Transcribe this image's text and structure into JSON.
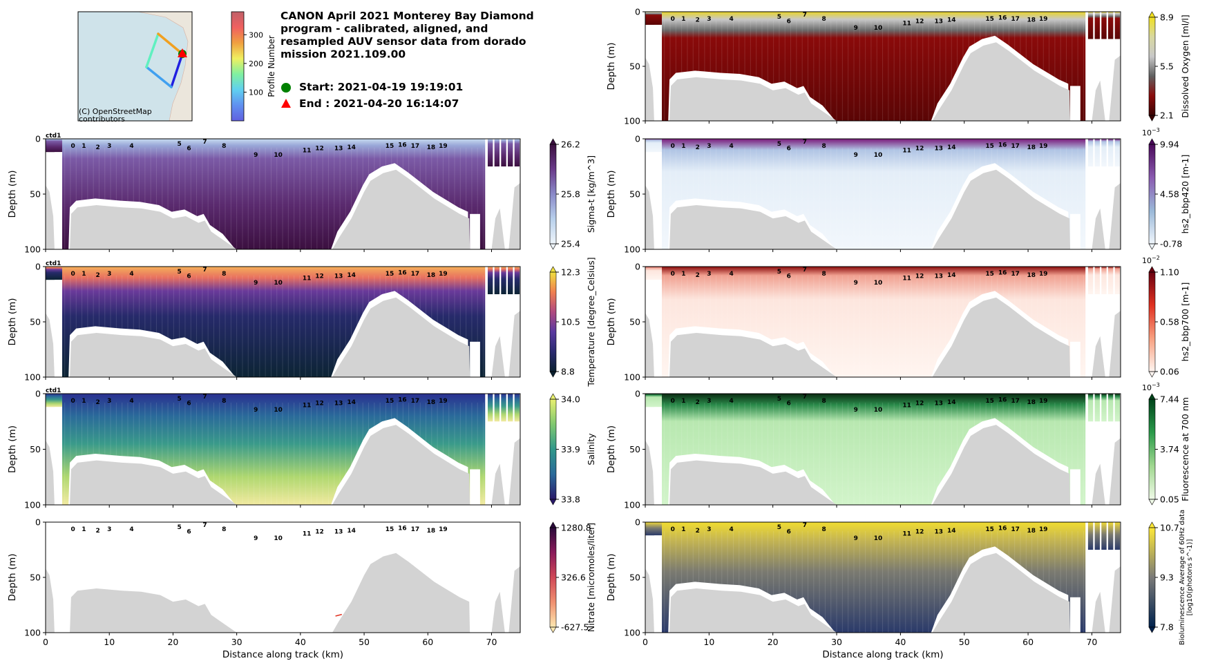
{
  "title": {
    "lines": [
      "CANON April 2021 Monterey Bay Diamond",
      "program - calibrated, aligned, and",
      "resampled AUV sensor data from dorado",
      "mission 2021.109.00"
    ]
  },
  "start": {
    "label": "Start: 2021-04-19 19:19:01",
    "color": "#008000"
  },
  "end": {
    "label": "End  : 2021-04-20 16:14:07",
    "color": "#ff0000"
  },
  "map": {
    "attribution": [
      "(C) OpenStreetMap",
      "contributors"
    ]
  },
  "profile_colorbar": {
    "label": "Profile Number",
    "ticks": [
      "100",
      "200",
      "300"
    ],
    "tick_values": [
      100,
      200,
      300
    ],
    "range": [
      0,
      380
    ],
    "colors": [
      "#c06068",
      "#f06060",
      "#f0a040",
      "#f0f060",
      "#80f0a0",
      "#60d0f0",
      "#6090f0",
      "#6060e0"
    ]
  },
  "axes": {
    "xlabel": "Distance along track (km)",
    "ylabel": "Depth (m)",
    "xticks": [
      "0",
      "10",
      "20",
      "30",
      "40",
      "50",
      "60",
      "70"
    ],
    "xtick_values": [
      0,
      10,
      20,
      30,
      40,
      50,
      60,
      70
    ],
    "yticks": [
      "0",
      "50",
      "100"
    ],
    "ytick_values": [
      0,
      50,
      100
    ],
    "xlim": [
      0,
      74.5
    ],
    "ylim": [
      100,
      0
    ]
  },
  "profile_labels": [
    "0",
    "1",
    "2",
    "3",
    "4",
    "5",
    "6",
    "7",
    "8",
    "9",
    "10",
    "11",
    "12",
    "13",
    "14",
    "15",
    "16",
    "17",
    "18",
    "19"
  ],
  "ctd_label": "ctd1",
  "chart_data": [
    {
      "type": "heatmap",
      "variable": "sigma_t",
      "colorbar_label": "Sigma-t [kg/m^3]",
      "cb_ticks": [
        "26.2",
        "25.8",
        "25.4"
      ],
      "multiplier": null,
      "ctd": true,
      "no_data": false,
      "data_colors": [
        [
          "0",
          "#c8dcf0"
        ],
        [
          "0.06",
          "#9aa8d8"
        ],
        [
          "0.18",
          "#7b5aa6"
        ],
        [
          "0.6",
          "#5a2a6e"
        ],
        [
          "1",
          "#3b0f3f"
        ]
      ],
      "cb_colors": [
        "#3b0f3f",
        "#6a3a8a",
        "#8a8ac8",
        "#b8d0ec",
        "#eef4fa"
      ]
    },
    {
      "type": "heatmap",
      "variable": "temperature",
      "colorbar_label": "Temperature [degree_Celsius]",
      "cb_ticks": [
        "12.3",
        "10.5",
        "8.8"
      ],
      "multiplier": null,
      "ctd": true,
      "no_data": false,
      "data_colors": [
        [
          "0",
          "#f5b05a"
        ],
        [
          "0.1",
          "#e87060"
        ],
        [
          "0.22",
          "#6a3a9a"
        ],
        [
          "0.45",
          "#262a6a"
        ],
        [
          "1",
          "#0c2434"
        ]
      ],
      "cb_colors": [
        "#f0e040",
        "#f08050",
        "#b04a80",
        "#5a3aa0",
        "#2a2a70",
        "#0a2030"
      ]
    },
    {
      "type": "heatmap",
      "variable": "salinity",
      "colorbar_label": "Salinity",
      "cb_ticks": [
        "34.0",
        "33.9",
        "33.8"
      ],
      "multiplier": null,
      "ctd": true,
      "no_data": false,
      "data_colors": [
        [
          "0",
          "#2a3090"
        ],
        [
          "0.2",
          "#2a6a9a"
        ],
        [
          "0.45",
          "#3a9a8a"
        ],
        [
          "0.75",
          "#b0d870"
        ],
        [
          "1",
          "#f2eaa0"
        ]
      ],
      "cb_colors": [
        "#e8f070",
        "#80c870",
        "#30988a",
        "#2a6a9a",
        "#2a1a6a"
      ]
    },
    {
      "type": "heatmap",
      "variable": "nitrate",
      "colorbar_label": "Nitrate [micromoles/liter]",
      "cb_ticks": [
        "1280.8",
        "326.6",
        "-627.5"
      ],
      "multiplier": null,
      "ctd": false,
      "no_data": true,
      "data_colors": [
        [
          "0",
          "#ffffff"
        ],
        [
          "1",
          "#ffffff"
        ]
      ],
      "cb_colors": [
        "#2a0a3a",
        "#8a1a5a",
        "#d04858",
        "#f09070",
        "#fde8b0"
      ]
    },
    {
      "type": "heatmap",
      "variable": "dissolved_oxygen",
      "colorbar_label": "Dissolved Oxygen [ml/l]",
      "cb_ticks": [
        "8.9",
        "5.5",
        "2.1"
      ],
      "multiplier": null,
      "ctd": false,
      "no_data": false,
      "data_colors": [
        [
          "0",
          "#e8d428"
        ],
        [
          "0.07",
          "#c8c8c8"
        ],
        [
          "0.17",
          "#6a6a6a"
        ],
        [
          "0.24",
          "#8a0a0a"
        ],
        [
          "1",
          "#5a0505"
        ]
      ],
      "cb_colors": [
        "#f0e020",
        "#d8d8a0",
        "#c8c8c8",
        "#606060",
        "#8a0a0a",
        "#3a0505"
      ]
    },
    {
      "type": "heatmap",
      "variable": "hs2_bbp420",
      "colorbar_label": "hs2_bbp420 [m-1]",
      "cb_ticks": [
        "9.94",
        "4.58",
        "-0.78"
      ],
      "multiplier": {
        "base": "10",
        "exp": "−3"
      },
      "ctd": false,
      "no_data": false,
      "data_colors": [
        [
          "0",
          "#7a1a7a"
        ],
        [
          "0.1",
          "#b0c4e4"
        ],
        [
          "0.3",
          "#e4eef8"
        ],
        [
          "1",
          "#f2f7fc"
        ]
      ],
      "cb_colors": [
        "#4a0a5a",
        "#8a5ab0",
        "#9ab8d8",
        "#f0f6fc"
      ]
    },
    {
      "type": "heatmap",
      "variable": "hs2_bbp700",
      "colorbar_label": "hs2_bbp700 [m-1]",
      "cb_ticks": [
        "1.10",
        "0.58",
        "0.06"
      ],
      "multiplier": {
        "base": "10",
        "exp": "−2"
      },
      "ctd": false,
      "no_data": false,
      "data_colors": [
        [
          "0",
          "#8a0a0a"
        ],
        [
          "0.08",
          "#f0a090"
        ],
        [
          "0.3",
          "#fde6de"
        ],
        [
          "1",
          "#fff5f0"
        ]
      ],
      "cb_colors": [
        "#6a0010",
        "#e03020",
        "#f8a080",
        "#fff5f0"
      ]
    },
    {
      "type": "heatmap",
      "variable": "fluorescence",
      "colorbar_label": "Fluorescence at 700 nm",
      "cb_ticks": [
        "7.44",
        "3.74",
        "0.05"
      ],
      "multiplier": {
        "base": "10",
        "exp": "−3"
      },
      "ctd": false,
      "no_data": false,
      "data_colors": [
        [
          "0",
          "#0a2a12"
        ],
        [
          "0.1",
          "#2a8a4a"
        ],
        [
          "0.25",
          "#b8e8b0"
        ],
        [
          "1",
          "#d2f4ca"
        ]
      ],
      "cb_colors": [
        "#00441b",
        "#2a9a4a",
        "#a0d890",
        "#f0fae8"
      ]
    },
    {
      "type": "heatmap",
      "variable": "bioluminescence",
      "colorbar_label": [
        "Bioluminescence Average of 60Hz data",
        "[log10(photons s^-1)]"
      ],
      "cb_ticks": [
        "10.7",
        "9.3",
        "7.8"
      ],
      "multiplier": null,
      "ctd": false,
      "no_data": false,
      "data_colors": [
        [
          "0",
          "#f0dc30"
        ],
        [
          "0.15",
          "#c8b850"
        ],
        [
          "0.45",
          "#7a7a70"
        ],
        [
          "1",
          "#2a3a6a"
        ]
      ],
      "cb_colors": [
        "#fde838",
        "#7a7a78",
        "#00224e"
      ]
    }
  ]
}
